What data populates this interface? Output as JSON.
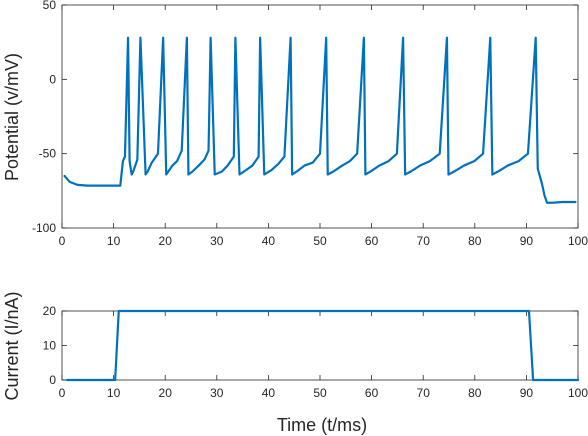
{
  "chart_data": [
    {
      "type": "line",
      "ylabel": "Potential (v/mV)",
      "xlabel": "",
      "xlim": [
        0,
        100
      ],
      "ylim": [
        -100,
        50
      ],
      "xticks": [
        "0",
        "10",
        "20",
        "30",
        "40",
        "50",
        "60",
        "70",
        "80",
        "90",
        "100"
      ],
      "yticks": [
        "50",
        "0",
        "-50",
        "-100"
      ],
      "grid": false,
      "color": "#0072BD",
      "series": [
        {
          "x": [
            0.5,
            1.5,
            3,
            5,
            8,
            11.3,
            11.8,
            12.2,
            12.8,
            13.1,
            13.5,
            13.8,
            14.6,
            15.2,
            16.2,
            16.6,
            17.4,
            18.6,
            19.6,
            20.2,
            20.6,
            21.4,
            22.3,
            23.2,
            24.2,
            24.5,
            25.3,
            26.5,
            27.6,
            28.4,
            28.8,
            29.6,
            31,
            32.1,
            33.3,
            33.6,
            34.4,
            35.7,
            36.9,
            38.1,
            38.4,
            39.2,
            40.6,
            41.9,
            43.1,
            44.3,
            44.6,
            45.5,
            47,
            48.6,
            50,
            51.2,
            51.5,
            52.6,
            54.3,
            55.8,
            57.2,
            58.5,
            58.8,
            59.8,
            61.5,
            63.3,
            64.9,
            66.1,
            66.5,
            67.6,
            69.4,
            71.3,
            73.2,
            74.6,
            74.9,
            76,
            77.9,
            79.9,
            81.6,
            83,
            83.4,
            84.5,
            86.4,
            88.5,
            90.3,
            91.8,
            92.2,
            93,
            93.5,
            94,
            95,
            97,
            99.5
          ],
          "y": [
            -65,
            -69,
            -71,
            -71.5,
            -71.5,
            -71.5,
            -55,
            -52,
            28,
            -55,
            -64,
            -62,
            -54,
            28,
            -64,
            -62,
            -56,
            -50,
            28,
            -64,
            -62,
            -58,
            -55,
            -48,
            28,
            -64,
            -62,
            -58,
            -54,
            -48,
            28,
            -64,
            -62,
            -58,
            -52,
            28,
            -64,
            -61,
            -58,
            -52,
            28,
            -64,
            -61,
            -57,
            -52,
            28,
            -64,
            -62,
            -58,
            -56,
            -50,
            28,
            -64,
            -62,
            -58,
            -55,
            -50,
            28,
            -64,
            -62,
            -58,
            -55,
            -50,
            28,
            -64,
            -62,
            -58,
            -55,
            -50,
            28,
            -64,
            -62,
            -58,
            -55,
            -50,
            28,
            -64,
            -62,
            -58,
            -55,
            -50,
            28,
            -60,
            -70,
            -78,
            -83,
            -83,
            -82.5,
            -82.5
          ]
        }
      ]
    },
    {
      "type": "line",
      "ylabel": "Current (I/nA)",
      "xlabel": "Time (t/ms)",
      "xlim": [
        0,
        100
      ],
      "ylim": [
        0,
        20
      ],
      "xticks": [
        "0",
        "10",
        "20",
        "30",
        "40",
        "50",
        "60",
        "70",
        "80",
        "90",
        "100"
      ],
      "yticks": [
        "20",
        "10",
        "0"
      ],
      "grid": false,
      "color": "#0072BD",
      "series": [
        {
          "x": [
            1,
            10.3,
            11,
            90.5,
            91.3,
            100
          ],
          "y": [
            0,
            0,
            20,
            20,
            0,
            0
          ]
        }
      ]
    }
  ]
}
